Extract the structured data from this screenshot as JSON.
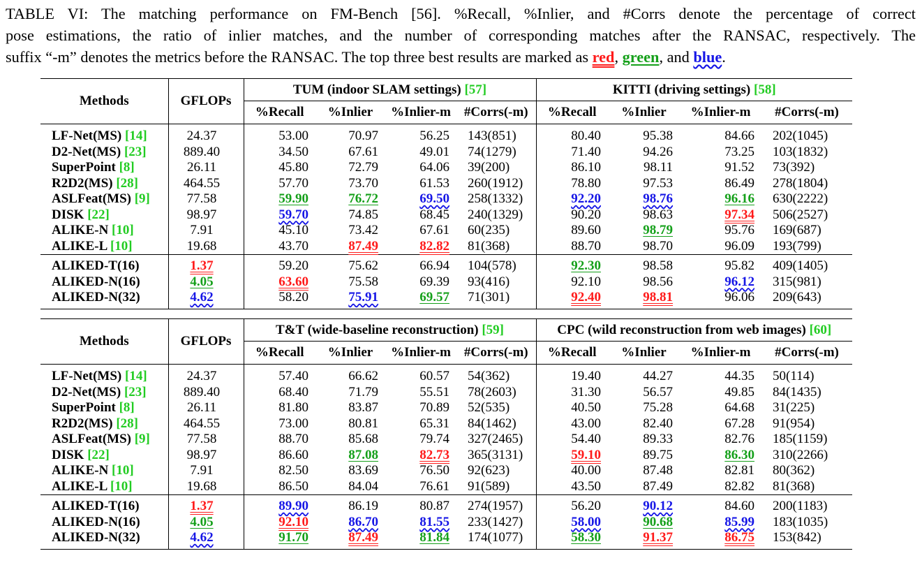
{
  "caption": {
    "line1": "TABLE VI: The matching performance on FM-Bench [56]. %Recall, %Inlier, and #Corrs denote the percentage of correct",
    "line2": "pose estimations, the ratio of inlier matches, and the number of corresponding matches after the RANSAC, respectively. The",
    "line3_pre": "suffix “-m” denotes the metrics before the RANSAC. The top three best results are marked as ",
    "red_word": "red",
    "sep1": ", ",
    "green_word": "green",
    "sep2": ", and ",
    "blue_word": "blue",
    "end": "."
  },
  "headers": {
    "methods": "Methods",
    "gflops": "GFLOPs",
    "cols": [
      "%Recall",
      "%Inlier",
      "%Inlier-m",
      "#Corrs(-m)"
    ]
  },
  "tables": [
    {
      "left": {
        "title": "TUM (indoor SLAM settings) ",
        "cite": "[57]"
      },
      "right": {
        "title": "KITTI (driving settings) ",
        "cite": "[58]"
      },
      "rows": [
        {
          "name": "LF-Net(MS) ",
          "cite": "[14]",
          "gflops": "24.37",
          "v": [
            "53.00",
            "70.97",
            "56.25",
            "143(851)",
            "80.40",
            "95.38",
            "84.66",
            "202(1045)"
          ],
          "h": {}
        },
        {
          "name": "D2-Net(MS) ",
          "cite": "[23]",
          "gflops": "889.40",
          "v": [
            "34.50",
            "67.61",
            "49.01",
            "74(1279)",
            "71.40",
            "94.26",
            "73.25",
            "103(1832)"
          ],
          "h": {}
        },
        {
          "name": "SuperPoint ",
          "cite": "[8]",
          "gflops": "26.11",
          "v": [
            "45.80",
            "72.79",
            "64.06",
            "39(200)",
            "86.10",
            "98.11",
            "91.52",
            "73(392)"
          ],
          "h": {}
        },
        {
          "name": "R2D2(MS) ",
          "cite": "[28]",
          "gflops": "464.55",
          "v": [
            "57.70",
            "73.70",
            "61.53",
            "260(1912)",
            "78.80",
            "97.53",
            "86.49",
            "278(1804)"
          ],
          "h": {}
        },
        {
          "name": "ASLFeat(MS) ",
          "cite": "[9]",
          "gflops": "77.58",
          "v": [
            "59.90",
            "76.72",
            "69.50",
            "258(1332)",
            "92.20",
            "98.76",
            "96.16",
            "630(2222)"
          ],
          "h": {
            "0": "green",
            "1": "green",
            "2": "blue",
            "4": "blue",
            "5": "blue",
            "6": "green"
          }
        },
        {
          "name": "DISK ",
          "cite": "[22]",
          "gflops": "98.97",
          "v": [
            "59.70",
            "74.85",
            "68.45",
            "240(1329)",
            "90.20",
            "98.63",
            "97.34",
            "506(2527)"
          ],
          "h": {
            "0": "blue",
            "6": "red"
          }
        },
        {
          "name": "ALIKE-N ",
          "cite": "[10]",
          "gflops": "7.91",
          "v": [
            "45.10",
            "73.42",
            "67.61",
            "60(235)",
            "89.60",
            "98.79",
            "95.76",
            "169(687)"
          ],
          "h": {
            "5": "green"
          }
        },
        {
          "name": "ALIKE-L ",
          "cite": "[10]",
          "gflops": "19.68",
          "v": [
            "43.70",
            "87.49",
            "82.82",
            "81(368)",
            "88.70",
            "98.70",
            "96.09",
            "193(799)"
          ],
          "h": {
            "1": "red",
            "2": "red"
          }
        },
        {
          "name": "ALIKED-T(16)",
          "cite": "",
          "gflops": "1.37",
          "gh": "red",
          "v": [
            "59.20",
            "75.62",
            "66.94",
            "104(578)",
            "92.30",
            "98.58",
            "95.82",
            "409(1405)"
          ],
          "h": {
            "4": "green"
          }
        },
        {
          "name": "ALIKED-N(16)",
          "cite": "",
          "gflops": "4.05",
          "gh": "green",
          "v": [
            "63.60",
            "75.58",
            "69.39",
            "93(416)",
            "92.10",
            "98.56",
            "96.12",
            "315(981)"
          ],
          "h": {
            "0": "red",
            "6": "blue"
          }
        },
        {
          "name": "ALIKED-N(32)",
          "cite": "",
          "gflops": "4.62",
          "gh": "blue",
          "v": [
            "58.20",
            "75.91",
            "69.57",
            "71(301)",
            "92.40",
            "98.81",
            "96.06",
            "209(643)"
          ],
          "h": {
            "1": "blue",
            "2": "green",
            "4": "red",
            "5": "red"
          }
        }
      ]
    },
    {
      "left": {
        "title": "T&T (wide-baseline reconstruction) ",
        "cite": "[59]"
      },
      "right": {
        "title": "CPC (wild reconstruction from web images) ",
        "cite": "[60]"
      },
      "rows": [
        {
          "name": "LF-Net(MS) ",
          "cite": "[14]",
          "gflops": "24.37",
          "v": [
            "57.40",
            "66.62",
            "60.57",
            "54(362)",
            "19.40",
            "44.27",
            "44.35",
            "50(114)"
          ],
          "h": {}
        },
        {
          "name": "D2-Net(MS) ",
          "cite": "[23]",
          "gflops": "889.40",
          "v": [
            "68.40",
            "71.79",
            "55.51",
            "78(2603)",
            "31.30",
            "56.57",
            "49.85",
            "84(1435)"
          ],
          "h": {}
        },
        {
          "name": "SuperPoint ",
          "cite": "[8]",
          "gflops": "26.11",
          "v": [
            "81.80",
            "83.87",
            "70.89",
            "52(535)",
            "40.50",
            "75.28",
            "64.68",
            "31(225)"
          ],
          "h": {}
        },
        {
          "name": "R2D2(MS) ",
          "cite": "[28]",
          "gflops": "464.55",
          "v": [
            "73.00",
            "80.81",
            "65.31",
            "84(1462)",
            "43.00",
            "82.40",
            "67.28",
            "91(954)"
          ],
          "h": {}
        },
        {
          "name": "ASLFeat(MS) ",
          "cite": "[9]",
          "gflops": "77.58",
          "v": [
            "88.70",
            "85.68",
            "79.74",
            "327(2465)",
            "54.40",
            "89.33",
            "82.76",
            "185(1159)"
          ],
          "h": {}
        },
        {
          "name": "DISK ",
          "cite": "[22]",
          "gflops": "98.97",
          "v": [
            "86.60",
            "87.08",
            "82.73",
            "365(3131)",
            "59.10",
            "89.75",
            "86.30",
            "310(2266)"
          ],
          "h": {
            "1": "green",
            "2": "red",
            "4": "red",
            "6": "green"
          }
        },
        {
          "name": "ALIKE-N ",
          "cite": "[10]",
          "gflops": "7.91",
          "v": [
            "82.50",
            "83.69",
            "76.50",
            "92(623)",
            "40.00",
            "87.48",
            "82.81",
            "80(362)"
          ],
          "h": {}
        },
        {
          "name": "ALIKE-L ",
          "cite": "[10]",
          "gflops": "19.68",
          "v": [
            "86.50",
            "84.04",
            "76.61",
            "91(589)",
            "43.50",
            "87.49",
            "82.82",
            "81(368)"
          ],
          "h": {}
        },
        {
          "name": "ALIKED-T(16)",
          "cite": "",
          "gflops": "1.37",
          "gh": "red",
          "v": [
            "89.90",
            "86.19",
            "80.87",
            "274(1957)",
            "56.20",
            "90.12",
            "84.60",
            "200(1183)"
          ],
          "h": {
            "0": "blue",
            "5": "blue"
          }
        },
        {
          "name": "ALIKED-N(16)",
          "cite": "",
          "gflops": "4.05",
          "gh": "green",
          "v": [
            "92.10",
            "86.70",
            "81.55",
            "233(1427)",
            "58.00",
            "90.68",
            "85.99",
            "183(1035)"
          ],
          "h": {
            "0": "red",
            "1": "blue",
            "2": "blue",
            "4": "blue",
            "5": "green",
            "6": "blue"
          }
        },
        {
          "name": "ALIKED-N(32)",
          "cite": "",
          "gflops": "4.62",
          "gh": "blue",
          "v": [
            "91.70",
            "87.49",
            "81.84",
            "174(1077)",
            "58.30",
            "91.37",
            "86.75",
            "153(842)"
          ],
          "h": {
            "0": "green",
            "1": "red",
            "2": "green",
            "4": "green",
            "5": "red",
            "6": "red"
          }
        }
      ]
    }
  ]
}
